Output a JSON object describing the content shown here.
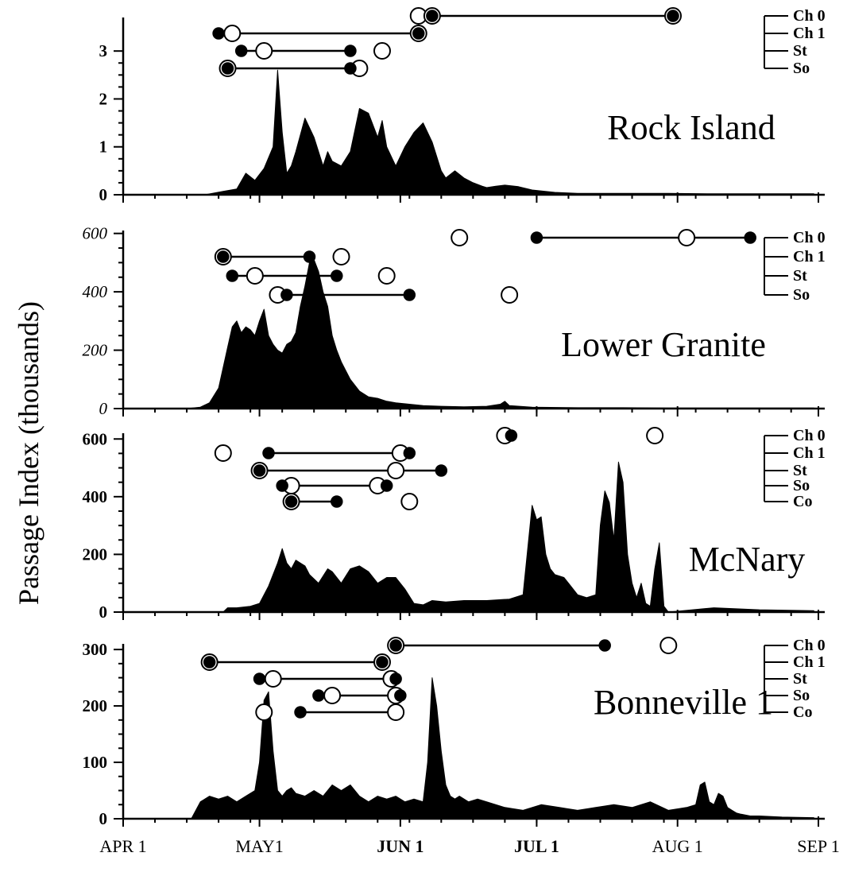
{
  "chart_data": [
    {
      "type": "area",
      "title": "Rock     Island",
      "yticks": [
        0,
        1,
        2,
        3
      ],
      "ylim": [
        0,
        3.7
      ],
      "y_italic": false,
      "groups": [
        "Ch 0",
        "Ch 1",
        "St",
        "So"
      ],
      "x": [
        18,
        22,
        25,
        27,
        29,
        31,
        33,
        34,
        35,
        36,
        37,
        38,
        40,
        42,
        44,
        45,
        46,
        48,
        50,
        52,
        54,
        56,
        57,
        58,
        59,
        60,
        62,
        64,
        66,
        68,
        70,
        71,
        73,
        75,
        77,
        79,
        80,
        82,
        84,
        87,
        90,
        95,
        100,
        110,
        120,
        130,
        140,
        152
      ],
      "values": [
        0.0,
        0.07,
        0.12,
        0.45,
        0.3,
        0.55,
        1.0,
        2.6,
        1.3,
        0.45,
        0.6,
        0.9,
        1.6,
        1.2,
        0.6,
        0.9,
        0.7,
        0.6,
        0.9,
        1.8,
        1.7,
        1.2,
        1.55,
        1.0,
        0.8,
        0.6,
        1.0,
        1.3,
        1.5,
        1.1,
        0.5,
        0.35,
        0.5,
        0.35,
        0.25,
        0.18,
        0.15,
        0.18,
        0.2,
        0.17,
        0.1,
        0.05,
        0.03,
        0.03,
        0.03,
        0.02,
        0.02,
        0.02
      ],
      "ranges": [
        {
          "group": "Ch 0",
          "start": 68,
          "end": 121,
          "start_marks": [
            "open",
            "filled"
          ],
          "end_marks": [
            "open",
            "filled"
          ],
          "extra_open": [
            65
          ]
        },
        {
          "group": "Ch 1",
          "start": 21,
          "end": 65,
          "start_marks": [
            "filled"
          ],
          "end_marks": [
            "open",
            "filled"
          ],
          "extra_open": [
            24
          ]
        },
        {
          "group": "St",
          "start": 26,
          "end": 50,
          "start_marks": [
            "filled"
          ],
          "end_marks": [
            "filled"
          ],
          "extra_open": [
            31,
            57
          ]
        },
        {
          "group": "So",
          "start": 23,
          "end": 50,
          "start_marks": [
            "open",
            "filled"
          ],
          "end_marks": [
            "filled"
          ],
          "extra_open": [
            52
          ]
        }
      ]
    },
    {
      "type": "area",
      "title": "Lower Granite",
      "yticks": [
        0,
        200,
        400,
        600
      ],
      "ylim": [
        0,
        610
      ],
      "y_italic": true,
      "groups": [
        "Ch 0",
        "Ch 1",
        "St",
        "So"
      ],
      "x": [
        14,
        17,
        19,
        21,
        23,
        24,
        25,
        26,
        27,
        28,
        29,
        30,
        31,
        32,
        33,
        34,
        35,
        36,
        37,
        38,
        39,
        40,
        41,
        42,
        43,
        44,
        45,
        46,
        47,
        48,
        49,
        50,
        52,
        54,
        56,
        58,
        60,
        63,
        66,
        70,
        75,
        80,
        83,
        84,
        85,
        90,
        100,
        110,
        120,
        130,
        140,
        152
      ],
      "values": [
        0,
        5,
        20,
        70,
        210,
        280,
        300,
        260,
        280,
        270,
        250,
        300,
        340,
        250,
        220,
        200,
        190,
        220,
        230,
        260,
        350,
        420,
        500,
        510,
        470,
        400,
        350,
        250,
        200,
        160,
        130,
        100,
        60,
        40,
        35,
        25,
        20,
        15,
        10,
        8,
        6,
        8,
        15,
        25,
        10,
        5,
        3,
        3,
        2,
        2,
        2,
        2
      ],
      "ranges": [
        {
          "group": "Ch 0",
          "start": 91,
          "end": 138,
          "start_marks": [
            "filled"
          ],
          "end_marks": [
            "filled"
          ],
          "extra_open": [
            74,
            124
          ]
        },
        {
          "group": "Ch 1",
          "start": 22,
          "end": 41,
          "start_marks": [
            "open",
            "filled"
          ],
          "end_marks": [
            "filled"
          ],
          "extra_open": [
            48
          ]
        },
        {
          "group": "St",
          "start": 24,
          "end": 47,
          "start_marks": [
            "filled"
          ],
          "end_marks": [
            "filled"
          ],
          "extra_open": [
            29,
            58
          ]
        },
        {
          "group": "So",
          "start": 36,
          "end": 63,
          "start_marks": [
            "filled"
          ],
          "end_marks": [
            "filled"
          ],
          "extra_open": [
            34,
            85
          ]
        }
      ]
    },
    {
      "type": "area",
      "title": "McNary",
      "yticks": [
        0,
        200,
        400,
        600
      ],
      "ylim": [
        0,
        620
      ],
      "y_italic": false,
      "groups": [
        "Ch 0",
        "Ch 1",
        "St",
        "So",
        "Co"
      ],
      "x": [
        22,
        23,
        25,
        28,
        30,
        32,
        33,
        34,
        35,
        36,
        37,
        38,
        39,
        40,
        41,
        43,
        45,
        46,
        48,
        50,
        52,
        54,
        56,
        58,
        60,
        62,
        64,
        66,
        68,
        71,
        75,
        80,
        85,
        88,
        90,
        91,
        92,
        93,
        94,
        95,
        97,
        98,
        100,
        102,
        104,
        105,
        106,
        107,
        108,
        109,
        110,
        111,
        112,
        113,
        114,
        115,
        116,
        117,
        118,
        119,
        120,
        130,
        140,
        152
      ],
      "values": [
        0,
        15,
        15,
        20,
        30,
        90,
        130,
        170,
        220,
        170,
        150,
        180,
        170,
        160,
        130,
        100,
        150,
        140,
        100,
        150,
        160,
        140,
        100,
        120,
        120,
        80,
        30,
        25,
        40,
        35,
        40,
        40,
        45,
        60,
        370,
        320,
        330,
        200,
        150,
        130,
        120,
        100,
        60,
        50,
        60,
        300,
        420,
        380,
        250,
        520,
        450,
        200,
        100,
        50,
        100,
        30,
        20,
        150,
        240,
        20,
        0,
        15,
        8,
        5
      ],
      "ranges": [
        {
          "group": "Ch 0",
          "start": 84,
          "end": 84,
          "start_marks": [
            "open",
            "filled"
          ],
          "end_marks": [],
          "extra_open": [
            117
          ]
        },
        {
          "group": "Ch 1",
          "start": 32,
          "end": 63,
          "start_marks": [
            "filled"
          ],
          "end_marks": [
            "filled"
          ],
          "extra_open": [
            22,
            61
          ]
        },
        {
          "group": "St",
          "start": 30,
          "end": 70,
          "start_marks": [
            "open",
            "filled"
          ],
          "end_marks": [
            "filled"
          ],
          "extra_open": [
            60
          ]
        },
        {
          "group": "So",
          "start": 35,
          "end": 58,
          "start_marks": [
            "filled"
          ],
          "end_marks": [
            "filled"
          ],
          "extra_open": [
            37,
            56
          ]
        },
        {
          "group": "Co",
          "start": 37,
          "end": 47,
          "start_marks": [
            "open",
            "filled"
          ],
          "end_marks": [
            "filled"
          ],
          "extra_open": [
            63
          ]
        }
      ]
    },
    {
      "type": "area",
      "title": "Bonneville 1",
      "yticks": [
        0,
        100,
        200,
        300
      ],
      "ylim": [
        0,
        310
      ],
      "y_italic": false,
      "groups": [
        "Ch 0",
        "Ch 1",
        "St",
        "So",
        "Co"
      ],
      "x": [
        15,
        17,
        19,
        21,
        23,
        25,
        27,
        29,
        30,
        31,
        32,
        33,
        34,
        35,
        36,
        37,
        38,
        40,
        42,
        44,
        46,
        48,
        50,
        52,
        54,
        56,
        58,
        60,
        62,
        64,
        66,
        67,
        68,
        69,
        70,
        71,
        72,
        73,
        74,
        76,
        78,
        80,
        84,
        88,
        92,
        96,
        100,
        104,
        108,
        112,
        116,
        120,
        124,
        126,
        127,
        128,
        129,
        130,
        131,
        132,
        133,
        134,
        135,
        136,
        138,
        140,
        145,
        152
      ],
      "values": [
        0,
        30,
        40,
        35,
        40,
        30,
        40,
        50,
        100,
        210,
        225,
        120,
        50,
        40,
        50,
        55,
        45,
        40,
        50,
        40,
        60,
        50,
        60,
        40,
        30,
        40,
        35,
        40,
        30,
        35,
        30,
        100,
        250,
        200,
        120,
        60,
        40,
        35,
        40,
        30,
        35,
        30,
        20,
        15,
        25,
        20,
        15,
        20,
        25,
        20,
        30,
        15,
        20,
        25,
        60,
        65,
        30,
        25,
        45,
        40,
        20,
        15,
        10,
        8,
        5,
        5,
        3,
        2
      ],
      "ranges": [
        {
          "group": "Ch 0",
          "start": 60,
          "end": 106,
          "start_marks": [
            "open",
            "filled"
          ],
          "end_marks": [
            "filled"
          ],
          "extra_open": [
            120
          ]
        },
        {
          "group": "Ch 1",
          "start": 19,
          "end": 57,
          "start_marks": [
            "open",
            "filled"
          ],
          "end_marks": [
            "open",
            "filled"
          ],
          "extra_open": []
        },
        {
          "group": "St",
          "start": 30,
          "end": 60,
          "start_marks": [
            "filled"
          ],
          "end_marks": [
            "filled"
          ],
          "extra_open": [
            33,
            59
          ]
        },
        {
          "group": "So",
          "start": 43,
          "end": 61,
          "start_marks": [
            "filled"
          ],
          "end_marks": [
            "filled"
          ],
          "extra_open": [
            46,
            60
          ]
        },
        {
          "group": "Co",
          "start": 39,
          "end": 60,
          "start_marks": [
            "filled"
          ],
          "end_marks": [
            "open"
          ],
          "extra_open": [
            31
          ]
        }
      ]
    }
  ],
  "x_axis": {
    "x_unit": "days after APR 1",
    "xlim": [
      0,
      153
    ],
    "ticks": [
      {
        "label": "APR 1",
        "x": 0,
        "bold": false
      },
      {
        "label": "MAY1",
        "x": 30,
        "bold": false
      },
      {
        "label": "JUN 1",
        "x": 61,
        "bold": true
      },
      {
        "label": "JUL 1",
        "x": 91,
        "bold": true
      },
      {
        "label": "AUG 1",
        "x": 122,
        "bold": false
      },
      {
        "label": "SEP 1",
        "x": 153,
        "bold": false
      }
    ]
  },
  "ylabel": "Passage Index (thousands)"
}
